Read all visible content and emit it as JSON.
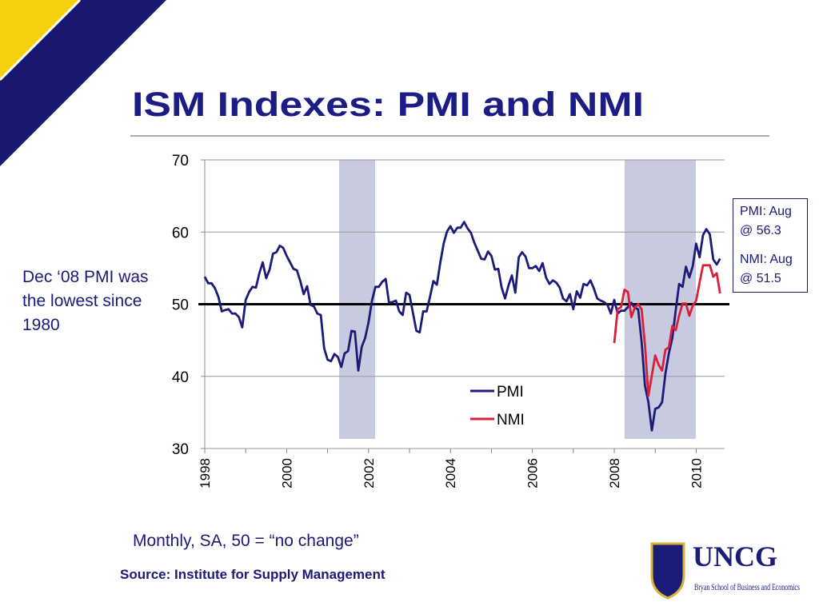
{
  "title": "ISM Indexes:  PMI and NMI",
  "note_left": "Dec ‘08 PMI was the lowest since 1980",
  "callouts": [
    "PMI: Aug @ 56.3",
    "NMI: Aug @ 51.5"
  ],
  "footnote": "Monthly, SA, 50 = “no change”",
  "source": "Source:  Institute for Supply Management",
  "logo": {
    "name": "UNCG",
    "school": "Bryan School of Business and Economics"
  },
  "chart_data": {
    "type": "line",
    "categories": [
      "1998",
      null,
      null,
      null,
      null,
      null,
      null,
      null,
      null,
      null,
      null,
      null,
      null,
      null,
      null,
      null,
      null,
      null,
      null,
      null,
      null,
      null,
      null,
      null,
      "2000",
      null,
      null,
      null,
      null,
      null,
      null,
      null,
      null,
      null,
      null,
      null,
      null,
      null,
      null,
      null,
      null,
      null,
      null,
      null,
      null,
      null,
      null,
      null,
      "2002",
      null,
      null,
      null,
      null,
      null,
      null,
      null,
      null,
      null,
      null,
      null,
      null,
      null,
      null,
      null,
      null,
      null,
      null,
      null,
      null,
      null,
      null,
      null,
      "2004",
      null,
      null,
      null,
      null,
      null,
      null,
      null,
      null,
      null,
      null,
      null,
      null,
      null,
      null,
      null,
      null,
      null,
      null,
      null,
      null,
      null,
      null,
      null,
      "2006",
      null,
      null,
      null,
      null,
      null,
      null,
      null,
      null,
      null,
      null,
      null,
      null,
      null,
      null,
      null,
      null,
      null,
      null,
      null,
      null,
      null,
      null,
      null,
      "2008",
      null,
      null,
      null,
      null,
      null,
      null,
      null,
      null,
      null,
      null,
      null,
      null,
      null,
      null,
      null,
      null,
      null,
      null,
      null,
      null,
      null,
      null,
      null,
      "2010",
      null,
      null,
      null,
      null,
      null,
      null,
      null
    ],
    "series": [
      {
        "name": "PMI",
        "color": "#1b1b78",
        "values": [
          53.8,
          52.9,
          52.9,
          52.2,
          51.0,
          49.0,
          49.2,
          49.3,
          48.7,
          48.7,
          48.2,
          46.8,
          50.6,
          51.7,
          52.4,
          52.3,
          54.3,
          55.8,
          53.6,
          54.8,
          57.0,
          57.2,
          58.1,
          57.8,
          56.7,
          55.8,
          54.9,
          54.7,
          53.2,
          51.4,
          52.5,
          49.9,
          49.7,
          48.7,
          48.5,
          43.9,
          42.3,
          42.1,
          43.1,
          42.7,
          41.3,
          43.2,
          43.5,
          46.3,
          46.2,
          40.8,
          44.1,
          45.3,
          47.5,
          50.5,
          52.4,
          52.4,
          53.1,
          53.5,
          50.2,
          50.3,
          50.5,
          49.0,
          48.5,
          51.6,
          51.3,
          48.8,
          46.3,
          46.1,
          49.0,
          49.0,
          51.0,
          53.2,
          52.7,
          55.7,
          58.4,
          60.1,
          60.8,
          59.9,
          60.6,
          60.6,
          61.4,
          60.5,
          59.9,
          58.5,
          57.4,
          56.3,
          56.2,
          57.3,
          56.7,
          54.8,
          54.9,
          52.3,
          50.8,
          52.6,
          54.0,
          51.6,
          56.5,
          57.2,
          56.6,
          55.0,
          55.0,
          55.3,
          54.6,
          55.7,
          53.7,
          52.8,
          53.3,
          53.0,
          52.3,
          50.8,
          50.4,
          51.4,
          49.3,
          51.8,
          50.9,
          52.8,
          52.6,
          53.3,
          52.2,
          50.8,
          50.5,
          50.3,
          49.9,
          48.7,
          50.6,
          48.7,
          49.1,
          49.1,
          49.6,
          50.2,
          49.5,
          49.3,
          44.8,
          38.7,
          36.4,
          32.5,
          35.5,
          35.7,
          36.4,
          40.4,
          43.2,
          45.3,
          49.1,
          52.8,
          52.4,
          55.2,
          53.7,
          55.3,
          58.4,
          56.5,
          59.6,
          60.4,
          59.7,
          56.2,
          55.5,
          56.3
        ]
      },
      {
        "name": "NMI",
        "color": "#d8203a",
        "values": [
          null,
          null,
          null,
          null,
          null,
          null,
          null,
          null,
          null,
          null,
          null,
          null,
          null,
          null,
          null,
          null,
          null,
          null,
          null,
          null,
          null,
          null,
          null,
          null,
          null,
          null,
          null,
          null,
          null,
          null,
          null,
          null,
          null,
          null,
          null,
          null,
          null,
          null,
          null,
          null,
          null,
          null,
          null,
          null,
          null,
          null,
          null,
          null,
          null,
          null,
          null,
          null,
          null,
          null,
          null,
          null,
          null,
          null,
          null,
          null,
          null,
          null,
          null,
          null,
          null,
          null,
          null,
          null,
          null,
          null,
          null,
          null,
          null,
          null,
          null,
          null,
          null,
          null,
          null,
          null,
          null,
          null,
          null,
          null,
          null,
          null,
          null,
          null,
          null,
          null,
          null,
          null,
          null,
          null,
          null,
          null,
          null,
          null,
          null,
          null,
          null,
          null,
          null,
          null,
          null,
          null,
          null,
          null,
          null,
          null,
          null,
          null,
          null,
          null,
          null,
          null,
          null,
          null,
          null,
          null,
          44.6,
          49.3,
          49.6,
          52.0,
          51.7,
          48.2,
          49.5,
          50.0,
          49.3,
          44.4,
          37.3,
          40.1,
          42.9,
          41.6,
          40.8,
          43.7,
          44.0,
          47.0,
          46.4,
          48.4,
          50.1,
          50.1,
          48.4,
          49.8,
          50.5,
          53.0,
          55.4,
          55.4,
          55.4,
          53.8,
          54.3,
          51.5
        ]
      }
    ],
    "ylim": [
      30,
      70
    ],
    "yticks": [
      30,
      40,
      50,
      60,
      70
    ],
    "reference_line": 50
  }
}
